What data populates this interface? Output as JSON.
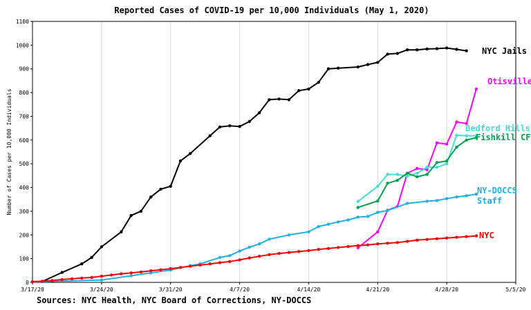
{
  "chart_data": {
    "type": "line",
    "title": "Reported Cases of COVID-19 per 10,000 Individuals (May 1, 2020)",
    "ylabel": "Number of Cases per 10,000 Individuals",
    "xlabel": "",
    "source": "Sources: NYC Health, NYC Board of Corrections, NY-DOCCS",
    "ylim": [
      0,
      1100
    ],
    "yticks": [
      "0",
      "100",
      "200",
      "300",
      "400",
      "500",
      "600",
      "700",
      "800",
      "900",
      "1000",
      "1100"
    ],
    "xlim": [
      "2020-03-17",
      "2020-05-05"
    ],
    "xticks": [
      {
        "date": "2020-03-17",
        "label": "3/17/20"
      },
      {
        "date": "2020-03-24",
        "label": "3/24/20"
      },
      {
        "date": "2020-03-31",
        "label": "3/31/20"
      },
      {
        "date": "2020-04-07",
        "label": "4/7/20"
      },
      {
        "date": "2020-04-14",
        "label": "4/14/20"
      },
      {
        "date": "2020-04-21",
        "label": "4/21/20"
      },
      {
        "date": "2020-04-28",
        "label": "4/28/20"
      },
      {
        "date": "2020-05-05",
        "label": "5/5/20"
      }
    ],
    "grid": "vertical",
    "legend": "inline labels at line ends",
    "series": [
      {
        "name": "NYC Jails",
        "label_lines": [
          "NYC Jails"
        ],
        "color": "#000000",
        "points": [
          [
            "2020-03-17",
            2
          ],
          [
            "2020-03-18",
            4
          ],
          [
            "2020-03-20",
            42
          ],
          [
            "2020-03-22",
            78
          ],
          [
            "2020-03-23",
            105
          ],
          [
            "2020-03-24",
            150
          ],
          [
            "2020-03-26",
            213
          ],
          [
            "2020-03-27",
            282
          ],
          [
            "2020-03-28",
            300
          ],
          [
            "2020-03-29",
            360
          ],
          [
            "2020-03-30",
            393
          ],
          [
            "2020-03-31",
            405
          ],
          [
            "2020-04-01",
            512
          ],
          [
            "2020-04-02",
            543
          ],
          [
            "2020-04-04",
            618
          ],
          [
            "2020-04-05",
            655
          ],
          [
            "2020-04-06",
            660
          ],
          [
            "2020-04-07",
            657
          ],
          [
            "2020-04-08",
            678
          ],
          [
            "2020-04-09",
            715
          ],
          [
            "2020-04-10",
            770
          ],
          [
            "2020-04-11",
            773
          ],
          [
            "2020-04-12",
            770
          ],
          [
            "2020-04-13",
            808
          ],
          [
            "2020-04-14",
            815
          ],
          [
            "2020-04-15",
            843
          ],
          [
            "2020-04-16",
            900
          ],
          [
            "2020-04-17",
            903
          ],
          [
            "2020-04-19",
            908
          ],
          [
            "2020-04-20",
            918
          ],
          [
            "2020-04-21",
            927
          ],
          [
            "2020-04-22",
            962
          ],
          [
            "2020-04-23",
            965
          ],
          [
            "2020-04-24",
            980
          ],
          [
            "2020-04-25",
            980
          ],
          [
            "2020-04-26",
            984
          ],
          [
            "2020-04-27",
            985
          ],
          [
            "2020-04-28",
            988
          ],
          [
            "2020-04-29",
            982
          ],
          [
            "2020-04-30",
            976
          ]
        ]
      },
      {
        "name": "Otisville CF",
        "label_lines": [
          "Otisville CF"
        ],
        "color": "#ff00ff",
        "points": [
          [
            "2020-04-19",
            146
          ],
          [
            "2020-04-21",
            213
          ],
          [
            "2020-04-22",
            304
          ],
          [
            "2020-04-23",
            320
          ],
          [
            "2020-04-24",
            460
          ],
          [
            "2020-04-25",
            480
          ],
          [
            "2020-04-26",
            475
          ],
          [
            "2020-04-27",
            588
          ],
          [
            "2020-04-28",
            583
          ],
          [
            "2020-04-29",
            676
          ],
          [
            "2020-04-30",
            670
          ],
          [
            "2020-05-01",
            815
          ]
        ]
      },
      {
        "name": "Bedford Hills",
        "label_lines": [
          "Bedford Hills"
        ],
        "color": "#40e0d0",
        "points": [
          [
            "2020-04-19",
            341
          ],
          [
            "2020-04-21",
            405
          ],
          [
            "2020-04-22",
            455
          ],
          [
            "2020-04-23",
            455
          ],
          [
            "2020-04-24",
            448
          ],
          [
            "2020-04-25",
            460
          ],
          [
            "2020-04-26",
            485
          ],
          [
            "2020-04-27",
            485
          ],
          [
            "2020-04-28",
            500
          ],
          [
            "2020-04-29",
            620
          ],
          [
            "2020-04-30",
            618
          ],
          [
            "2020-05-01",
            618
          ]
        ]
      },
      {
        "name": "Fishkill CF",
        "label_lines": [
          "Fishkill CF"
        ],
        "color": "#00a050",
        "points": [
          [
            "2020-04-19",
            316
          ],
          [
            "2020-04-21",
            343
          ],
          [
            "2020-04-22",
            418
          ],
          [
            "2020-04-23",
            430
          ],
          [
            "2020-04-24",
            460
          ],
          [
            "2020-04-25",
            445
          ],
          [
            "2020-04-26",
            455
          ],
          [
            "2020-04-27",
            505
          ],
          [
            "2020-04-28",
            512
          ],
          [
            "2020-04-29",
            570
          ],
          [
            "2020-04-30",
            600
          ],
          [
            "2020-05-01",
            610
          ]
        ]
      },
      {
        "name": "NY-DOCCS Staff",
        "label_lines": [
          "NY-DOCCS",
          "Staff"
        ],
        "color": "#1ab0e8",
        "points": [
          [
            "2020-03-17",
            2
          ],
          [
            "2020-03-24",
            10
          ],
          [
            "2020-03-27",
            28
          ],
          [
            "2020-03-29",
            40
          ],
          [
            "2020-03-31",
            52
          ],
          [
            "2020-04-02",
            70
          ],
          [
            "2020-04-03",
            78
          ],
          [
            "2020-04-05",
            105
          ],
          [
            "2020-04-06",
            113
          ],
          [
            "2020-04-07",
            132
          ],
          [
            "2020-04-08",
            148
          ],
          [
            "2020-04-09",
            162
          ],
          [
            "2020-04-10",
            182
          ],
          [
            "2020-04-12",
            200
          ],
          [
            "2020-04-14",
            213
          ],
          [
            "2020-04-15",
            235
          ],
          [
            "2020-04-16",
            245
          ],
          [
            "2020-04-17",
            255
          ],
          [
            "2020-04-18",
            263
          ],
          [
            "2020-04-19",
            275
          ],
          [
            "2020-04-20",
            278
          ],
          [
            "2020-04-21",
            295
          ],
          [
            "2020-04-22",
            303
          ],
          [
            "2020-04-24",
            333
          ],
          [
            "2020-04-26",
            342
          ],
          [
            "2020-04-27",
            345
          ],
          [
            "2020-04-28",
            353
          ],
          [
            "2020-04-29",
            360
          ],
          [
            "2020-04-30",
            365
          ],
          [
            "2020-05-01",
            372
          ]
        ]
      },
      {
        "name": "NYC",
        "label_lines": [
          "NYC"
        ],
        "color": "#ff0000",
        "points": [
          [
            "2020-03-17",
            3
          ],
          [
            "2020-03-18",
            5
          ],
          [
            "2020-03-19",
            8
          ],
          [
            "2020-03-20",
            12
          ],
          [
            "2020-03-21",
            15
          ],
          [
            "2020-03-22",
            18
          ],
          [
            "2020-03-23",
            21
          ],
          [
            "2020-03-24",
            26
          ],
          [
            "2020-03-25",
            31
          ],
          [
            "2020-03-26",
            36
          ],
          [
            "2020-03-27",
            40
          ],
          [
            "2020-03-28",
            44
          ],
          [
            "2020-03-29",
            49
          ],
          [
            "2020-03-30",
            53
          ],
          [
            "2020-03-31",
            58
          ],
          [
            "2020-04-01",
            63
          ],
          [
            "2020-04-02",
            68
          ],
          [
            "2020-04-03",
            73
          ],
          [
            "2020-04-04",
            78
          ],
          [
            "2020-04-05",
            83
          ],
          [
            "2020-04-06",
            88
          ],
          [
            "2020-04-07",
            95
          ],
          [
            "2020-04-08",
            103
          ],
          [
            "2020-04-09",
            110
          ],
          [
            "2020-04-10",
            117
          ],
          [
            "2020-04-11",
            122
          ],
          [
            "2020-04-12",
            126
          ],
          [
            "2020-04-13",
            130
          ],
          [
            "2020-04-14",
            134
          ],
          [
            "2020-04-15",
            139
          ],
          [
            "2020-04-16",
            143
          ],
          [
            "2020-04-17",
            147
          ],
          [
            "2020-04-18",
            151
          ],
          [
            "2020-04-19",
            155
          ],
          [
            "2020-04-20",
            158
          ],
          [
            "2020-04-21",
            162
          ],
          [
            "2020-04-22",
            165
          ],
          [
            "2020-04-23",
            168
          ],
          [
            "2020-04-24",
            173
          ],
          [
            "2020-04-25",
            178
          ],
          [
            "2020-04-26",
            181
          ],
          [
            "2020-04-27",
            184
          ],
          [
            "2020-04-28",
            187
          ],
          [
            "2020-04-29",
            190
          ],
          [
            "2020-04-30",
            193
          ],
          [
            "2020-05-01",
            196
          ]
        ]
      }
    ]
  }
}
